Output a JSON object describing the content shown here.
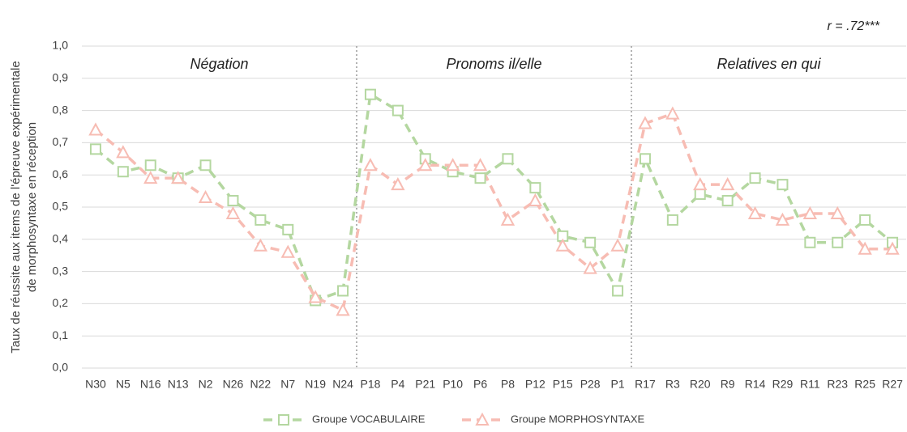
{
  "chart_data": {
    "type": "line",
    "ylabel": [
      "Taux de réussite aux items de l'épreuve expérimentale",
      "de morphosyntaxe en réception"
    ],
    "annotation": "r = .72***",
    "sections": [
      "Négation",
      "Pronoms il/elle",
      "Relatives en qui"
    ],
    "categories": [
      "N30",
      "N5",
      "N16",
      "N13",
      "N2",
      "N26",
      "N22",
      "N7",
      "N19",
      "N24",
      "P18",
      "P4",
      "P21",
      "P10",
      "P6",
      "P8",
      "P12",
      "P15",
      "P28",
      "P1",
      "R17",
      "R3",
      "R20",
      "R9",
      "R14",
      "R29",
      "R11",
      "R23",
      "R25",
      "R27"
    ],
    "series": [
      {
        "name": "Groupe VOCABULAIRE",
        "color": "#b4d7a0",
        "marker": "square",
        "values": [
          0.68,
          0.61,
          0.63,
          0.59,
          0.63,
          0.52,
          0.46,
          0.43,
          0.21,
          0.24,
          0.85,
          0.8,
          0.65,
          0.61,
          0.59,
          0.65,
          0.56,
          0.41,
          0.39,
          0.24,
          0.65,
          0.46,
          0.54,
          0.52,
          0.59,
          0.57,
          0.39,
          0.39,
          0.46,
          0.39
        ]
      },
      {
        "name": "Groupe MORPHOSYNTAXE",
        "color": "#f7bcb3",
        "marker": "triangle",
        "values": [
          0.74,
          0.67,
          0.59,
          0.59,
          0.53,
          0.48,
          0.38,
          0.36,
          0.22,
          0.18,
          0.63,
          0.57,
          0.63,
          0.63,
          0.63,
          0.46,
          0.52,
          0.38,
          0.31,
          0.38,
          0.76,
          0.79,
          0.57,
          0.57,
          0.48,
          0.46,
          0.48,
          0.48,
          0.37,
          0.37
        ]
      }
    ],
    "ylim": [
      0,
      1.0
    ],
    "yticks": [
      {
        "value": 0,
        "label": "0,0"
      },
      {
        "value": 0.1,
        "label": "0,1"
      },
      {
        "value": 0.2,
        "label": "0,2"
      },
      {
        "value": 0.3,
        "label": "0,3"
      },
      {
        "value": 0.4,
        "label": "0,4"
      },
      {
        "value": 0.5,
        "label": "0,5"
      },
      {
        "value": 0.6,
        "label": "0,6"
      },
      {
        "value": 0.7,
        "label": "0,7"
      },
      {
        "value": 0.8,
        "label": "0,8"
      },
      {
        "value": 0.9,
        "label": "0,9"
      },
      {
        "value": 1.0,
        "label": "1,0"
      }
    ],
    "grid": true
  }
}
